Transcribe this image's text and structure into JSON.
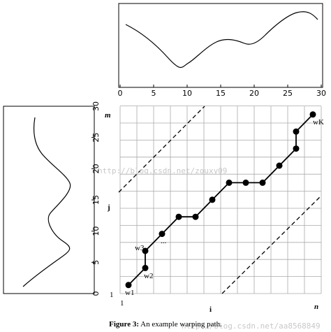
{
  "top_plot": {
    "xlim": [
      0,
      30
    ],
    "xticks": [
      0,
      5,
      10,
      15,
      20,
      25,
      30
    ]
  },
  "left_plot": {
    "ylim": [
      0,
      30
    ],
    "yticks": [
      0,
      5,
      10,
      15,
      20,
      25,
      30
    ]
  },
  "grid": {
    "label_m": "m",
    "label_n": "n",
    "label_i": "i",
    "label_j": "j",
    "origin_x": "1",
    "origin_y": "1",
    "path": {
      "i": [
        1,
        2,
        2,
        3,
        4,
        5,
        6,
        7,
        8,
        9,
        10,
        11,
        11,
        12
      ],
      "j": [
        1,
        2,
        3,
        4,
        5,
        5,
        6,
        7,
        7,
        7,
        8,
        9,
        10,
        11
      ]
    },
    "point_labels": [
      "w1",
      "w2",
      "w3",
      "...",
      "wK"
    ]
  },
  "caption": {
    "label": "Figure 3:",
    "text": "An example warping path."
  },
  "watermarks": [
    "http://blog.csdn.net/zouxy09",
    "http://blog.csdn.net/aa8568849"
  ]
}
